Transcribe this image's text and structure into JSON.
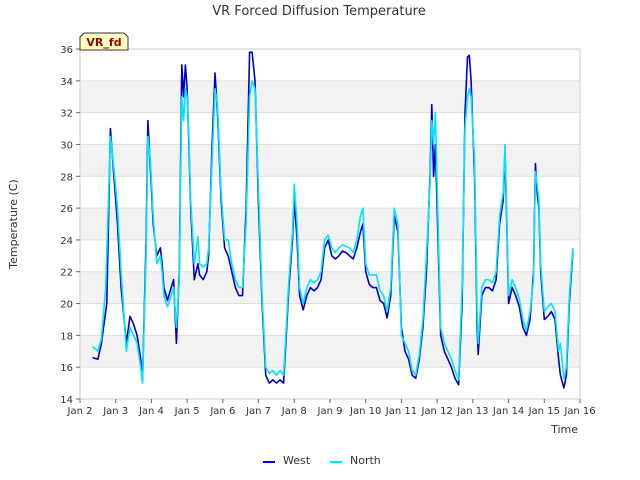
{
  "chart_data": {
    "type": "line",
    "title": "VR Forced Diffusion Temperature",
    "xlabel": "Time",
    "ylabel": "Temperature (C)",
    "annotation": "VR_fd",
    "xlim": [
      2,
      16
    ],
    "ylim": [
      14,
      36
    ],
    "x_ticks": [
      {
        "value": 2,
        "label": "Jan 2"
      },
      {
        "value": 3,
        "label": "Jan 3"
      },
      {
        "value": 4,
        "label": "Jan 4"
      },
      {
        "value": 5,
        "label": "Jan 5"
      },
      {
        "value": 6,
        "label": "Jan 6"
      },
      {
        "value": 7,
        "label": "Jan 7"
      },
      {
        "value": 8,
        "label": "Jan 8"
      },
      {
        "value": 9,
        "label": "Jan 9"
      },
      {
        "value": 10,
        "label": "Jan 10"
      },
      {
        "value": 11,
        "label": "Jan 11"
      },
      {
        "value": 12,
        "label": "Jan 12"
      },
      {
        "value": 13,
        "label": "Jan 13"
      },
      {
        "value": 14,
        "label": "Jan 14"
      },
      {
        "value": 15,
        "label": "Jan 15"
      },
      {
        "value": 16,
        "label": "Jan 16"
      }
    ],
    "y_ticks": [
      14,
      16,
      18,
      20,
      22,
      24,
      26,
      28,
      30,
      32,
      34,
      36
    ],
    "grid": true,
    "legend": "bottom-center",
    "series": [
      {
        "name": "West",
        "color": "#0000cc",
        "points": [
          [
            2.35,
            16.6
          ],
          [
            2.5,
            16.5
          ],
          [
            2.6,
            17.5
          ],
          [
            2.75,
            20.0
          ],
          [
            2.85,
            31.0
          ],
          [
            2.95,
            28.0
          ],
          [
            3.05,
            25.0
          ],
          [
            3.15,
            21.0
          ],
          [
            3.3,
            17.5
          ],
          [
            3.4,
            19.2
          ],
          [
            3.5,
            18.7
          ],
          [
            3.6,
            18.0
          ],
          [
            3.7,
            16.5
          ],
          [
            3.75,
            15.1
          ],
          [
            3.85,
            24.0
          ],
          [
            3.9,
            31.5
          ],
          [
            3.97,
            28.5
          ],
          [
            4.05,
            25.0
          ],
          [
            4.15,
            23.0
          ],
          [
            4.25,
            23.5
          ],
          [
            4.3,
            22.5
          ],
          [
            4.35,
            21.0
          ],
          [
            4.45,
            20.2
          ],
          [
            4.55,
            21.0
          ],
          [
            4.62,
            21.5
          ],
          [
            4.7,
            17.5
          ],
          [
            4.78,
            22.0
          ],
          [
            4.85,
            35.0
          ],
          [
            4.9,
            33.0
          ],
          [
            4.95,
            35.0
          ],
          [
            5.0,
            33.5
          ],
          [
            5.05,
            30.0
          ],
          [
            5.1,
            26.0
          ],
          [
            5.2,
            21.5
          ],
          [
            5.3,
            22.5
          ],
          [
            5.35,
            21.8
          ],
          [
            5.45,
            21.5
          ],
          [
            5.55,
            22.0
          ],
          [
            5.6,
            23.0
          ],
          [
            5.7,
            30.0
          ],
          [
            5.78,
            34.5
          ],
          [
            5.85,
            32.0
          ],
          [
            5.95,
            26.5
          ],
          [
            6.05,
            23.5
          ],
          [
            6.15,
            23.0
          ],
          [
            6.25,
            22.0
          ],
          [
            6.35,
            21.0
          ],
          [
            6.45,
            20.5
          ],
          [
            6.55,
            20.5
          ],
          [
            6.65,
            26.0
          ],
          [
            6.75,
            35.8
          ],
          [
            6.82,
            35.8
          ],
          [
            6.9,
            34.0
          ],
          [
            7.0,
            26.0
          ],
          [
            7.1,
            20.0
          ],
          [
            7.2,
            15.5
          ],
          [
            7.3,
            15.0
          ],
          [
            7.4,
            15.2
          ],
          [
            7.5,
            15.0
          ],
          [
            7.6,
            15.2
          ],
          [
            7.7,
            15.0
          ],
          [
            7.85,
            21.0
          ],
          [
            7.95,
            24.0
          ],
          [
            8.0,
            26.5
          ],
          [
            8.08,
            24.0
          ],
          [
            8.15,
            20.5
          ],
          [
            8.25,
            19.6
          ],
          [
            8.35,
            20.5
          ],
          [
            8.45,
            21.0
          ],
          [
            8.55,
            20.8
          ],
          [
            8.65,
            21.0
          ],
          [
            8.75,
            21.5
          ],
          [
            8.85,
            23.5
          ],
          [
            8.95,
            24.0
          ],
          [
            9.05,
            23.0
          ],
          [
            9.15,
            22.8
          ],
          [
            9.25,
            23.0
          ],
          [
            9.35,
            23.3
          ],
          [
            9.45,
            23.2
          ],
          [
            9.55,
            23.0
          ],
          [
            9.65,
            22.8
          ],
          [
            9.75,
            23.5
          ],
          [
            9.85,
            24.5
          ],
          [
            9.92,
            25.0
          ],
          [
            10.0,
            22.0
          ],
          [
            10.1,
            21.2
          ],
          [
            10.2,
            21.0
          ],
          [
            10.3,
            21.0
          ],
          [
            10.4,
            20.2
          ],
          [
            10.5,
            20.0
          ],
          [
            10.6,
            19.1
          ],
          [
            10.7,
            20.5
          ],
          [
            10.8,
            25.5
          ],
          [
            10.9,
            24.5
          ],
          [
            11.0,
            18.5
          ],
          [
            11.1,
            17.0
          ],
          [
            11.2,
            16.5
          ],
          [
            11.3,
            15.5
          ],
          [
            11.4,
            15.3
          ],
          [
            11.5,
            16.5
          ],
          [
            11.6,
            18.5
          ],
          [
            11.7,
            22.0
          ],
          [
            11.8,
            28.0
          ],
          [
            11.85,
            32.5
          ],
          [
            11.9,
            28.0
          ],
          [
            11.95,
            30.0
          ],
          [
            12.05,
            22.0
          ],
          [
            12.1,
            18.0
          ],
          [
            12.2,
            17.0
          ],
          [
            12.3,
            16.5
          ],
          [
            12.4,
            16.0
          ],
          [
            12.5,
            15.3
          ],
          [
            12.6,
            14.9
          ],
          [
            12.7,
            20.0
          ],
          [
            12.78,
            32.0
          ],
          [
            12.85,
            35.5
          ],
          [
            12.9,
            35.6
          ],
          [
            12.95,
            34.0
          ],
          [
            13.05,
            28.0
          ],
          [
            13.12,
            18.5
          ],
          [
            13.15,
            16.8
          ],
          [
            13.25,
            20.5
          ],
          [
            13.35,
            21.0
          ],
          [
            13.45,
            21.0
          ],
          [
            13.55,
            20.8
          ],
          [
            13.65,
            21.5
          ],
          [
            13.75,
            25.0
          ],
          [
            13.85,
            26.5
          ],
          [
            13.9,
            29.5
          ],
          [
            13.95,
            25.0
          ],
          [
            14.0,
            20.0
          ],
          [
            14.1,
            21.0
          ],
          [
            14.2,
            20.5
          ],
          [
            14.3,
            19.8
          ],
          [
            14.4,
            18.5
          ],
          [
            14.5,
            18.0
          ],
          [
            14.6,
            19.0
          ],
          [
            14.7,
            22.0
          ],
          [
            14.75,
            28.8
          ],
          [
            14.8,
            27.0
          ],
          [
            14.85,
            26.0
          ],
          [
            14.9,
            22.0
          ],
          [
            15.0,
            19.0
          ],
          [
            15.1,
            19.2
          ],
          [
            15.2,
            19.5
          ],
          [
            15.3,
            19.0
          ],
          [
            15.4,
            16.5
          ],
          [
            15.45,
            15.5
          ],
          [
            15.55,
            14.7
          ],
          [
            15.62,
            15.5
          ],
          [
            15.7,
            20.0
          ],
          [
            15.8,
            23.3
          ]
        ]
      },
      {
        "name": "North",
        "color": "#00e5ff",
        "points": [
          [
            2.35,
            17.3
          ],
          [
            2.5,
            17.0
          ],
          [
            2.6,
            17.8
          ],
          [
            2.72,
            21.0
          ],
          [
            2.85,
            30.5
          ],
          [
            2.95,
            28.5
          ],
          [
            3.05,
            26.0
          ],
          [
            3.15,
            22.0
          ],
          [
            3.3,
            17.0
          ],
          [
            3.4,
            18.5
          ],
          [
            3.5,
            18.0
          ],
          [
            3.6,
            17.5
          ],
          [
            3.7,
            16.0
          ],
          [
            3.75,
            15.0
          ],
          [
            3.85,
            23.0
          ],
          [
            3.9,
            30.5
          ],
          [
            3.97,
            29.0
          ],
          [
            4.05,
            25.5
          ],
          [
            4.15,
            22.5
          ],
          [
            4.25,
            23.0
          ],
          [
            4.3,
            22.0
          ],
          [
            4.35,
            20.5
          ],
          [
            4.45,
            19.8
          ],
          [
            4.55,
            20.5
          ],
          [
            4.62,
            21.0
          ],
          [
            4.7,
            18.5
          ],
          [
            4.78,
            21.5
          ],
          [
            4.85,
            33.0
          ],
          [
            4.9,
            31.5
          ],
          [
            4.95,
            33.5
          ],
          [
            5.0,
            33.0
          ],
          [
            5.05,
            30.5
          ],
          [
            5.1,
            26.5
          ],
          [
            5.2,
            22.5
          ],
          [
            5.3,
            24.2
          ],
          [
            5.35,
            22.5
          ],
          [
            5.45,
            22.3
          ],
          [
            5.55,
            22.5
          ],
          [
            5.6,
            23.5
          ],
          [
            5.7,
            29.0
          ],
          [
            5.78,
            33.5
          ],
          [
            5.85,
            32.5
          ],
          [
            5.95,
            27.0
          ],
          [
            6.05,
            24.0
          ],
          [
            6.15,
            24.0
          ],
          [
            6.25,
            22.5
          ],
          [
            6.35,
            21.5
          ],
          [
            6.45,
            21.0
          ],
          [
            6.55,
            21.0
          ],
          [
            6.65,
            25.0
          ],
          [
            6.75,
            33.0
          ],
          [
            6.82,
            34.0
          ],
          [
            6.9,
            33.5
          ],
          [
            7.0,
            27.0
          ],
          [
            7.1,
            20.5
          ],
          [
            7.2,
            16.0
          ],
          [
            7.3,
            15.6
          ],
          [
            7.4,
            15.8
          ],
          [
            7.5,
            15.5
          ],
          [
            7.6,
            15.8
          ],
          [
            7.7,
            15.5
          ],
          [
            7.85,
            21.5
          ],
          [
            7.95,
            24.5
          ],
          [
            8.0,
            27.5
          ],
          [
            8.08,
            25.0
          ],
          [
            8.15,
            21.0
          ],
          [
            8.25,
            20.0
          ],
          [
            8.35,
            21.0
          ],
          [
            8.45,
            21.5
          ],
          [
            8.55,
            21.3
          ],
          [
            8.65,
            21.5
          ],
          [
            8.75,
            22.0
          ],
          [
            8.85,
            24.0
          ],
          [
            8.95,
            24.3
          ],
          [
            9.05,
            23.5
          ],
          [
            9.15,
            23.2
          ],
          [
            9.25,
            23.5
          ],
          [
            9.35,
            23.7
          ],
          [
            9.45,
            23.6
          ],
          [
            9.55,
            23.5
          ],
          [
            9.65,
            23.2
          ],
          [
            9.75,
            24.0
          ],
          [
            9.85,
            25.5
          ],
          [
            9.92,
            26.0
          ],
          [
            10.0,
            22.5
          ],
          [
            10.1,
            21.8
          ],
          [
            10.2,
            21.8
          ],
          [
            10.3,
            21.8
          ],
          [
            10.4,
            20.8
          ],
          [
            10.5,
            20.5
          ],
          [
            10.6,
            19.5
          ],
          [
            10.7,
            21.0
          ],
          [
            10.8,
            26.0
          ],
          [
            10.9,
            25.0
          ],
          [
            11.0,
            18.0
          ],
          [
            11.1,
            17.5
          ],
          [
            11.2,
            17.0
          ],
          [
            11.3,
            15.8
          ],
          [
            11.4,
            15.5
          ],
          [
            11.5,
            16.8
          ],
          [
            11.6,
            19.0
          ],
          [
            11.7,
            23.0
          ],
          [
            11.8,
            27.5
          ],
          [
            11.85,
            31.5
          ],
          [
            11.9,
            30.0
          ],
          [
            11.95,
            32.0
          ],
          [
            12.05,
            23.0
          ],
          [
            12.1,
            18.5
          ],
          [
            12.2,
            17.5
          ],
          [
            12.3,
            17.0
          ],
          [
            12.4,
            16.5
          ],
          [
            12.5,
            15.8
          ],
          [
            12.6,
            15.2
          ],
          [
            12.7,
            21.0
          ],
          [
            12.78,
            31.0
          ],
          [
            12.85,
            33.0
          ],
          [
            12.9,
            33.5
          ],
          [
            12.95,
            33.0
          ],
          [
            13.05,
            29.0
          ],
          [
            13.12,
            19.5
          ],
          [
            13.15,
            17.5
          ],
          [
            13.25,
            21.0
          ],
          [
            13.35,
            21.5
          ],
          [
            13.45,
            21.5
          ],
          [
            13.55,
            21.3
          ],
          [
            13.65,
            22.0
          ],
          [
            13.75,
            25.5
          ],
          [
            13.85,
            27.0
          ],
          [
            13.9,
            30.0
          ],
          [
            13.95,
            25.5
          ],
          [
            14.0,
            20.5
          ],
          [
            14.1,
            21.5
          ],
          [
            14.2,
            21.0
          ],
          [
            14.3,
            20.3
          ],
          [
            14.4,
            19.0
          ],
          [
            14.5,
            18.3
          ],
          [
            14.6,
            19.5
          ],
          [
            14.7,
            21.5
          ],
          [
            14.75,
            28.3
          ],
          [
            14.8,
            27.5
          ],
          [
            14.85,
            26.5
          ],
          [
            14.9,
            22.5
          ],
          [
            15.0,
            19.5
          ],
          [
            15.1,
            19.8
          ],
          [
            15.2,
            20.0
          ],
          [
            15.3,
            19.5
          ],
          [
            15.4,
            17.0
          ],
          [
            15.45,
            17.5
          ],
          [
            15.55,
            15.3
          ],
          [
            15.62,
            16.0
          ],
          [
            15.7,
            20.5
          ],
          [
            15.8,
            23.5
          ]
        ]
      }
    ]
  }
}
